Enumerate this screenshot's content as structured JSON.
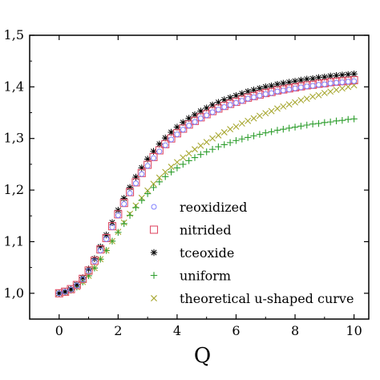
{
  "chart_data": {
    "type": "scatter",
    "title": "",
    "xlabel": "Q",
    "ylabel": "",
    "xlim": [
      -1,
      10.5
    ],
    "ylim": [
      0.95,
      1.5
    ],
    "x_ticks": [
      0,
      2,
      4,
      6,
      8,
      10
    ],
    "x_tick_labels": [
      "0",
      "2",
      "4",
      "6",
      "8",
      "10"
    ],
    "y_ticks": [
      1.0,
      1.1,
      1.2,
      1.3,
      1.4,
      1.5
    ],
    "y_tick_labels": [
      "1,0",
      "1,1",
      "1,2",
      "1,3",
      "1,4",
      "1,5"
    ],
    "grid": false,
    "legend_position": "bottom-right",
    "x": [
      0,
      0.2,
      0.4,
      0.6,
      0.8,
      1.0,
      1.2,
      1.4,
      1.6,
      1.8,
      2.0,
      2.2,
      2.4,
      2.6,
      2.8,
      3.0,
      3.2,
      3.4,
      3.6,
      3.8,
      4.0,
      4.2,
      4.4,
      4.6,
      4.8,
      5.0,
      5.2,
      5.4,
      5.6,
      5.8,
      6.0,
      6.2,
      6.4,
      6.6,
      6.8,
      7.0,
      7.2,
      7.4,
      7.6,
      7.8,
      8.0,
      8.2,
      8.4,
      8.6,
      8.8,
      9.0,
      9.2,
      9.4,
      9.6,
      9.8,
      10.0
    ],
    "series": [
      {
        "name": "reoxidized",
        "marker": "circle",
        "color": "#8080ff",
        "values": [
          1.0,
          1.003,
          1.007,
          1.015,
          1.027,
          1.043,
          1.062,
          1.083,
          1.105,
          1.128,
          1.151,
          1.173,
          1.194,
          1.213,
          1.231,
          1.247,
          1.262,
          1.275,
          1.287,
          1.298,
          1.308,
          1.317,
          1.325,
          1.332,
          1.339,
          1.345,
          1.351,
          1.356,
          1.361,
          1.365,
          1.369,
          1.373,
          1.377,
          1.38,
          1.383,
          1.386,
          1.388,
          1.391,
          1.393,
          1.395,
          1.397,
          1.399,
          1.401,
          1.402,
          1.404,
          1.405,
          1.407,
          1.408,
          1.409,
          1.41,
          1.411
        ]
      },
      {
        "name": "nitrided",
        "marker": "square",
        "color": "#e0506a",
        "values": [
          1.0,
          1.003,
          1.008,
          1.016,
          1.028,
          1.044,
          1.063,
          1.085,
          1.107,
          1.13,
          1.153,
          1.175,
          1.196,
          1.215,
          1.233,
          1.249,
          1.264,
          1.277,
          1.289,
          1.3,
          1.31,
          1.319,
          1.327,
          1.334,
          1.341,
          1.347,
          1.353,
          1.358,
          1.363,
          1.367,
          1.371,
          1.375,
          1.379,
          1.382,
          1.385,
          1.388,
          1.39,
          1.393,
          1.395,
          1.397,
          1.399,
          1.401,
          1.403,
          1.404,
          1.406,
          1.407,
          1.409,
          1.41,
          1.411,
          1.412,
          1.413
        ]
      },
      {
        "name": "tceoxide",
        "marker": "asterisk",
        "color": "#000000",
        "values": [
          1.0,
          1.003,
          1.008,
          1.017,
          1.03,
          1.047,
          1.067,
          1.09,
          1.113,
          1.137,
          1.161,
          1.184,
          1.205,
          1.225,
          1.243,
          1.26,
          1.275,
          1.289,
          1.301,
          1.312,
          1.322,
          1.331,
          1.339,
          1.346,
          1.353,
          1.359,
          1.365,
          1.37,
          1.375,
          1.379,
          1.383,
          1.387,
          1.391,
          1.394,
          1.397,
          1.4,
          1.402,
          1.405,
          1.407,
          1.409,
          1.411,
          1.413,
          1.415,
          1.416,
          1.418,
          1.419,
          1.421,
          1.422,
          1.423,
          1.424,
          1.425
        ]
      },
      {
        "name": "uniform",
        "marker": "plus",
        "color": "#2e9e2e",
        "values": [
          1.0,
          1.002,
          1.006,
          1.012,
          1.022,
          1.034,
          1.049,
          1.066,
          1.083,
          1.101,
          1.118,
          1.135,
          1.151,
          1.166,
          1.18,
          1.193,
          1.205,
          1.216,
          1.226,
          1.235,
          1.243,
          1.25,
          1.257,
          1.263,
          1.269,
          1.274,
          1.279,
          1.284,
          1.288,
          1.292,
          1.296,
          1.299,
          1.302,
          1.305,
          1.308,
          1.311,
          1.313,
          1.316,
          1.318,
          1.32,
          1.322,
          1.324,
          1.326,
          1.328,
          1.329,
          1.331,
          1.332,
          1.334,
          1.335,
          1.337,
          1.338
        ]
      },
      {
        "name": "theoretical u-shaped curve",
        "marker": "x",
        "color": "#a8a832",
        "values": [
          1.0,
          1.002,
          1.006,
          1.012,
          1.022,
          1.034,
          1.049,
          1.066,
          1.083,
          1.101,
          1.119,
          1.137,
          1.154,
          1.17,
          1.185,
          1.199,
          1.212,
          1.224,
          1.235,
          1.245,
          1.254,
          1.263,
          1.271,
          1.279,
          1.286,
          1.293,
          1.3,
          1.306,
          1.312,
          1.318,
          1.323,
          1.329,
          1.334,
          1.339,
          1.344,
          1.349,
          1.353,
          1.358,
          1.362,
          1.366,
          1.37,
          1.374,
          1.377,
          1.381,
          1.384,
          1.388,
          1.391,
          1.394,
          1.397,
          1.4,
          1.403
        ]
      }
    ]
  }
}
